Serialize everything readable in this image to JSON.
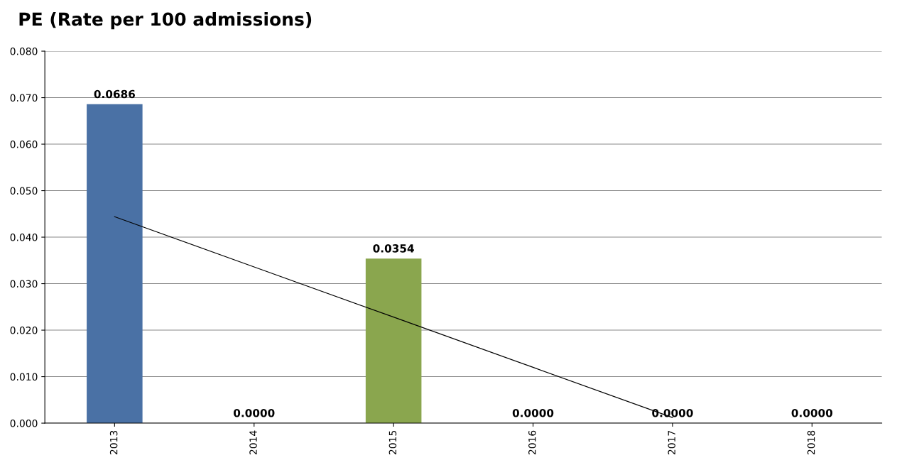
{
  "chart_data": {
    "type": "bar",
    "title": "PE (Rate per 100 admissions)",
    "categories": [
      "2013",
      "2014",
      "2015",
      "2016",
      "2017",
      "2018"
    ],
    "series": [
      {
        "colors": [
          "#4a71a5",
          "#4a71a5",
          "#8aa64e",
          "#8aa64e",
          "#8aa64e",
          "#8aa64e"
        ],
        "values": [
          0.0686,
          0,
          0.0354,
          0,
          0,
          0
        ],
        "value_labels": [
          "0.0686",
          "0.0000",
          "0.0354",
          "0.0000",
          "0.0000",
          "0.0000"
        ]
      },
      {
        "type": "line",
        "color": "#000000",
        "values": [
          0.0444,
          0.0336,
          0.0228,
          0.012,
          0.0012,
          null
        ]
      }
    ],
    "ylim": [
      0,
      0.08
    ],
    "yticks": [
      {
        "value": 0,
        "label": "0.000"
      },
      {
        "value": 0.01,
        "label": "0.010"
      },
      {
        "value": 0.02,
        "label": "0.020"
      },
      {
        "value": 0.03,
        "label": "0.030"
      },
      {
        "value": 0.04,
        "label": "0.040"
      },
      {
        "value": 0.05,
        "label": "0.050"
      },
      {
        "value": 0.06,
        "label": "0.060"
      },
      {
        "value": 0.07,
        "label": "0.070"
      },
      {
        "value": 0.08,
        "label": "0.080"
      }
    ],
    "grid": "y"
  }
}
